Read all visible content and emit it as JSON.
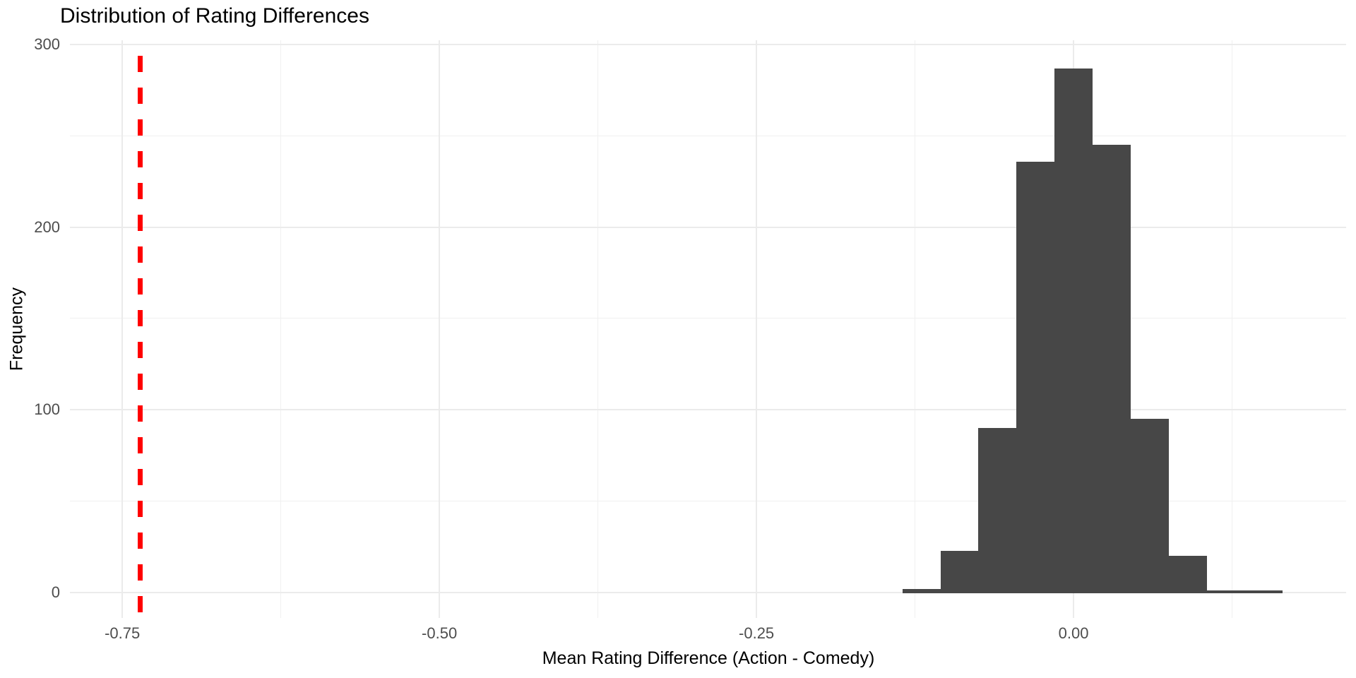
{
  "title": "Distribution of Rating Differences",
  "chart_data": {
    "type": "bar",
    "subtype": "histogram",
    "title": "Distribution of Rating Differences",
    "xlabel": "Mean Rating Difference (Action - Comedy)",
    "ylabel": "Frequency",
    "bin_start": -0.135,
    "bin_width": 0.03,
    "counts": [
      2,
      23,
      90,
      236,
      287,
      245,
      95,
      20,
      1,
      1
    ],
    "total_count": 1000,
    "x_ticks": [
      {
        "value": -0.75,
        "label": "-0.75"
      },
      {
        "value": -0.5,
        "label": "-0.50"
      },
      {
        "value": -0.25,
        "label": "-0.25"
      },
      {
        "value": 0.0,
        "label": "0.00"
      }
    ],
    "x_minor_ticks": [
      -0.625,
      -0.375,
      -0.125,
      0.125
    ],
    "y_ticks": [
      {
        "value": 0,
        "label": "0"
      },
      {
        "value": 100,
        "label": "100"
      },
      {
        "value": 200,
        "label": "200"
      },
      {
        "value": 300,
        "label": "300"
      }
    ],
    "y_minor_ticks": [
      50,
      150,
      250
    ],
    "xlim": [
      -0.7913,
      0.2149
    ],
    "ylim": [
      -13.9,
      302.3
    ],
    "grid": "on",
    "legend": "none",
    "vline": {
      "x": -0.736,
      "color": "#ff0000",
      "style": "dashed"
    },
    "colors": {
      "bar": "#474747",
      "grid_major": "#ebebeb",
      "grid_minor": "#f0f0f0",
      "tick_text": "#4d4d4d",
      "title_text": "#000000",
      "background": "#ffffff",
      "vline": "#ff0000"
    }
  }
}
